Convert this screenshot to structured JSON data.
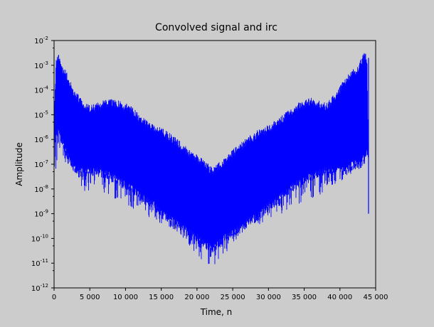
{
  "chart_data": {
    "type": "line",
    "title": "Convolved signal and irc",
    "xlabel": "Time, n",
    "ylabel": "Amplitude",
    "xlim": [
      0,
      45000
    ],
    "ylim": [
      1e-12,
      0.01
    ],
    "yscale": "log",
    "grid": false,
    "legend": "none",
    "x_ticks": [
      0,
      5000,
      10000,
      15000,
      20000,
      25000,
      30000,
      35000,
      40000,
      45000
    ],
    "x_tick_labels": [
      "0",
      "5 000",
      "10 000",
      "15 000",
      "20 000",
      "25 000",
      "30 000",
      "35 000",
      "40 000",
      "45 000"
    ],
    "y_tick_exponents": [
      -12,
      -11,
      -10,
      -9,
      -8,
      -7,
      -6,
      -5,
      -4,
      -3,
      -2
    ],
    "y_tick_base": "10",
    "series": [
      {
        "color": "#0000ff",
        "x": [
          0,
          300,
          600,
          1000,
          1500,
          2000,
          2500,
          3000,
          3500,
          4000,
          4500,
          5000,
          6000,
          7000,
          8000,
          9000,
          10000,
          11000,
          12000,
          13000,
          14000,
          15000,
          16000,
          17000,
          18000,
          19000,
          20000,
          21000,
          22000,
          23000,
          24000,
          25000,
          26000,
          27000,
          28000,
          29000,
          30000,
          31000,
          32000,
          33000,
          34000,
          35000,
          36000,
          37000,
          38000,
          39000,
          40000,
          41000,
          42000,
          42500,
          43000,
          43500,
          43800,
          44000
        ],
        "upper": [
          1e-05,
          0.002,
          0.004,
          0.001,
          0.0008,
          0.0004,
          0.00015,
          0.0001,
          6e-05,
          4e-05,
          3e-05,
          2.5e-05,
          3e-05,
          4e-05,
          5e-05,
          4e-05,
          3e-05,
          2e-05,
          1e-05,
          6e-06,
          4e-06,
          3e-06,
          2e-06,
          1.2e-06,
          7e-07,
          4e-07,
          2.5e-07,
          1.5e-07,
          8e-08,
          1.2e-07,
          2e-07,
          4e-07,
          7e-07,
          1.2e-06,
          2e-06,
          3e-06,
          4e-06,
          6e-06,
          1e-05,
          1.8e-05,
          3e-05,
          4e-05,
          5e-05,
          4e-05,
          3e-05,
          6e-05,
          0.00015,
          0.0004,
          0.0008,
          0.001,
          0.002,
          0.004,
          0.002,
          1e-07
        ],
        "body_low": [
          1e-06,
          1e-06,
          3e-06,
          1e-06,
          4e-07,
          2e-07,
          1e-07,
          6e-08,
          5e-08,
          5e-08,
          5e-08,
          5e-08,
          5e-08,
          4e-08,
          3e-08,
          2e-08,
          1.5e-08,
          1e-08,
          5e-09,
          3e-09,
          2e-09,
          1e-09,
          6e-10,
          4e-10,
          2.5e-10,
          1.5e-10,
          1e-10,
          6e-11,
          4e-11,
          6e-11,
          1e-10,
          1.5e-10,
          2.5e-10,
          4e-10,
          6e-10,
          1e-09,
          2e-09,
          3e-09,
          5e-09,
          1e-08,
          1.5e-08,
          2e-08,
          3e-08,
          4e-08,
          5e-08,
          5e-08,
          5e-08,
          6e-08,
          1e-07,
          1e-07,
          1e-07,
          2e-07,
          3e-07,
          1e-07
        ],
        "spike_low": [
          5e-08,
          5e-08,
          8e-07,
          8e-08,
          1e-07,
          1e-07,
          8e-08,
          4e-08,
          2e-08,
          1e-08,
          5e-09,
          1e-08,
          1e-08,
          5e-09,
          4e-09,
          3e-09,
          2e-09,
          1.5e-09,
          1e-09,
          8e-10,
          5e-10,
          4e-10,
          3e-10,
          2e-10,
          1e-10,
          5e-11,
          2e-11,
          1e-11,
          8e-12,
          1e-11,
          2e-11,
          5e-11,
          1e-10,
          2e-10,
          3e-10,
          4e-10,
          5e-10,
          8e-10,
          1e-09,
          1.5e-09,
          2e-09,
          3e-09,
          4e-09,
          5e-09,
          1e-08,
          1e-08,
          2e-08,
          3e-08,
          5e-08,
          1e-07,
          1e-07,
          1e-07,
          1e-07,
          1e-09
        ]
      }
    ]
  }
}
